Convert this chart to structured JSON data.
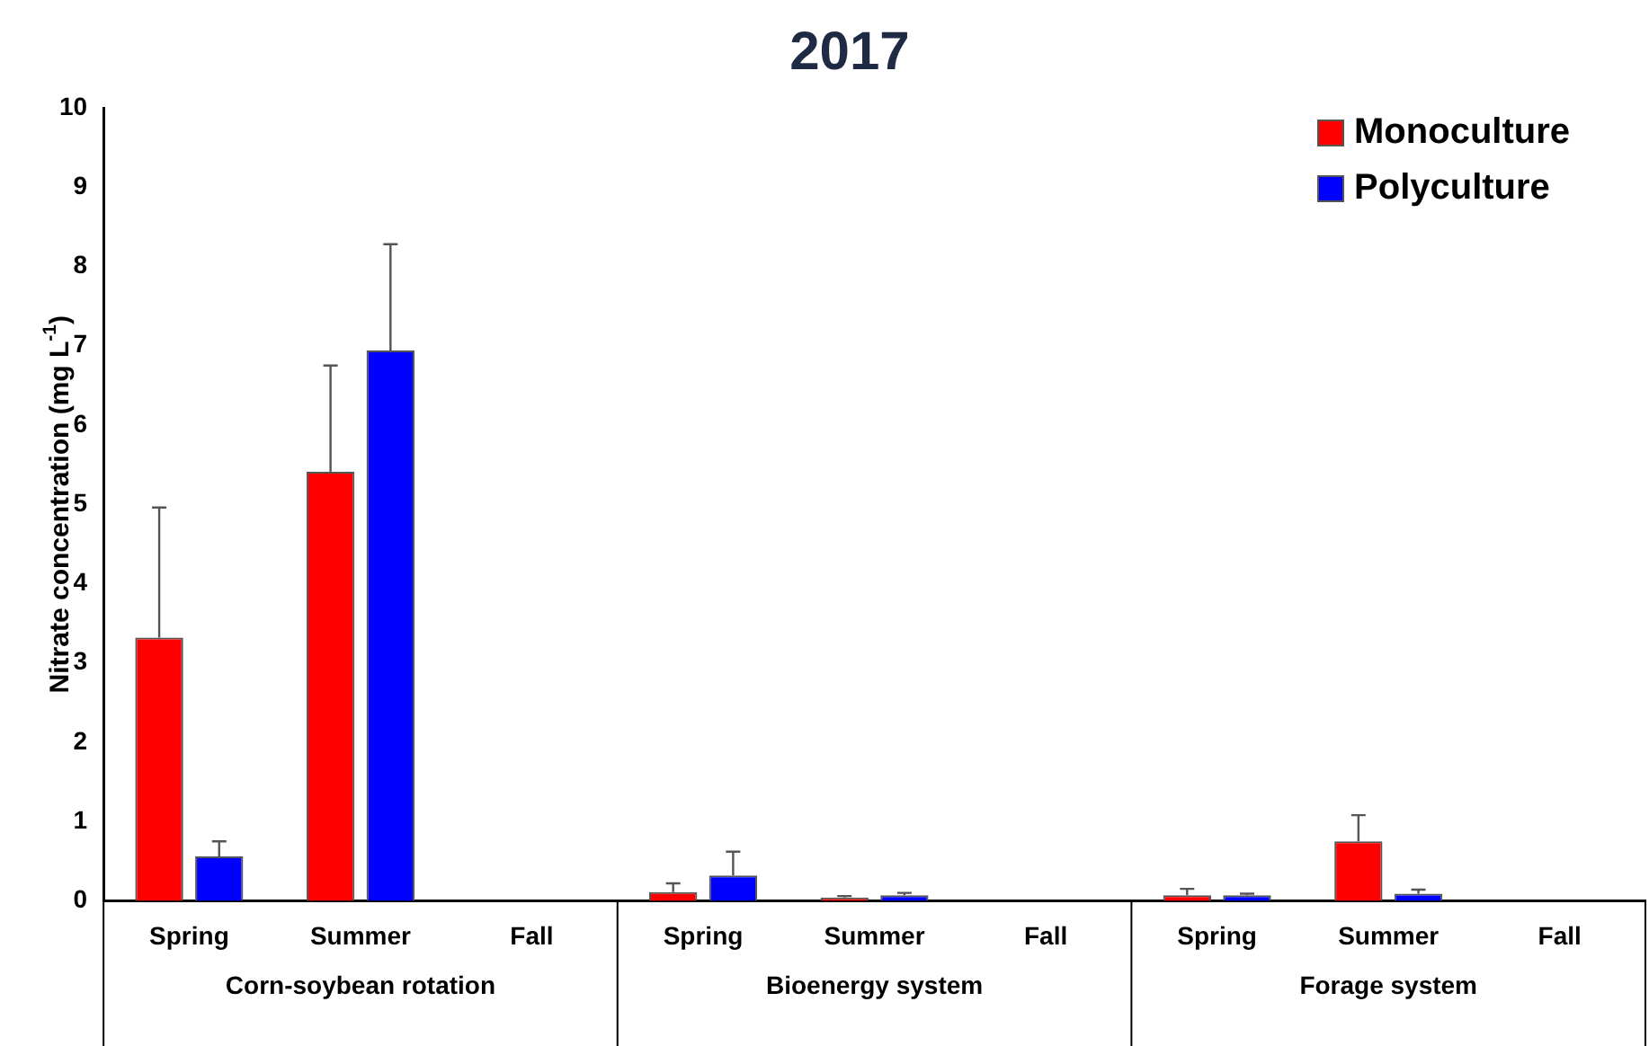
{
  "chart_data": {
    "type": "bar",
    "title": "2017",
    "ylabel": "Nitrate concentration (mg L$^{-1}$)",
    "categories": [
      "Spring",
      "Summer",
      "Fall",
      "Spring",
      "Summer",
      "Fall",
      "Spring",
      "Summer",
      "Fall"
    ],
    "annotations": [
      "Corn-soybean rotation",
      "Bioenergy system",
      "Forage system"
    ],
    "series": [
      {
        "name": "Monoculture",
        "color": "#ff0000",
        "values": [
          3.32,
          5.41,
          null,
          0.11,
          0.04,
          null,
          0.07,
          0.75,
          null
        ],
        "errors": [
          [
            3.32,
            4.96
          ],
          [
            5.41,
            6.75
          ],
          null,
          [
            0.11,
            0.22
          ],
          [
            0.04,
            0.06
          ],
          null,
          [
            0.07,
            0.15
          ],
          [
            0.75,
            1.08
          ],
          null
        ]
      },
      {
        "name": "Polyculture",
        "color": "#0000ff",
        "values": [
          0.56,
          6.94,
          null,
          0.32,
          0.07,
          null,
          0.07,
          0.09,
          null
        ],
        "errors": [
          [
            0.56,
            0.75
          ],
          [
            6.94,
            8.28
          ],
          null,
          [
            0.32,
            0.62
          ],
          [
            0.07,
            0.1
          ],
          null,
          [
            0.07,
            0.09
          ],
          [
            0.09,
            0.14
          ],
          null
        ]
      }
    ],
    "ylim": [
      0,
      10
    ],
    "yticks": [
      0,
      1,
      2,
      3,
      4,
      5,
      6,
      7,
      8,
      9,
      10
    ],
    "grid": false,
    "legend": "top right"
  }
}
